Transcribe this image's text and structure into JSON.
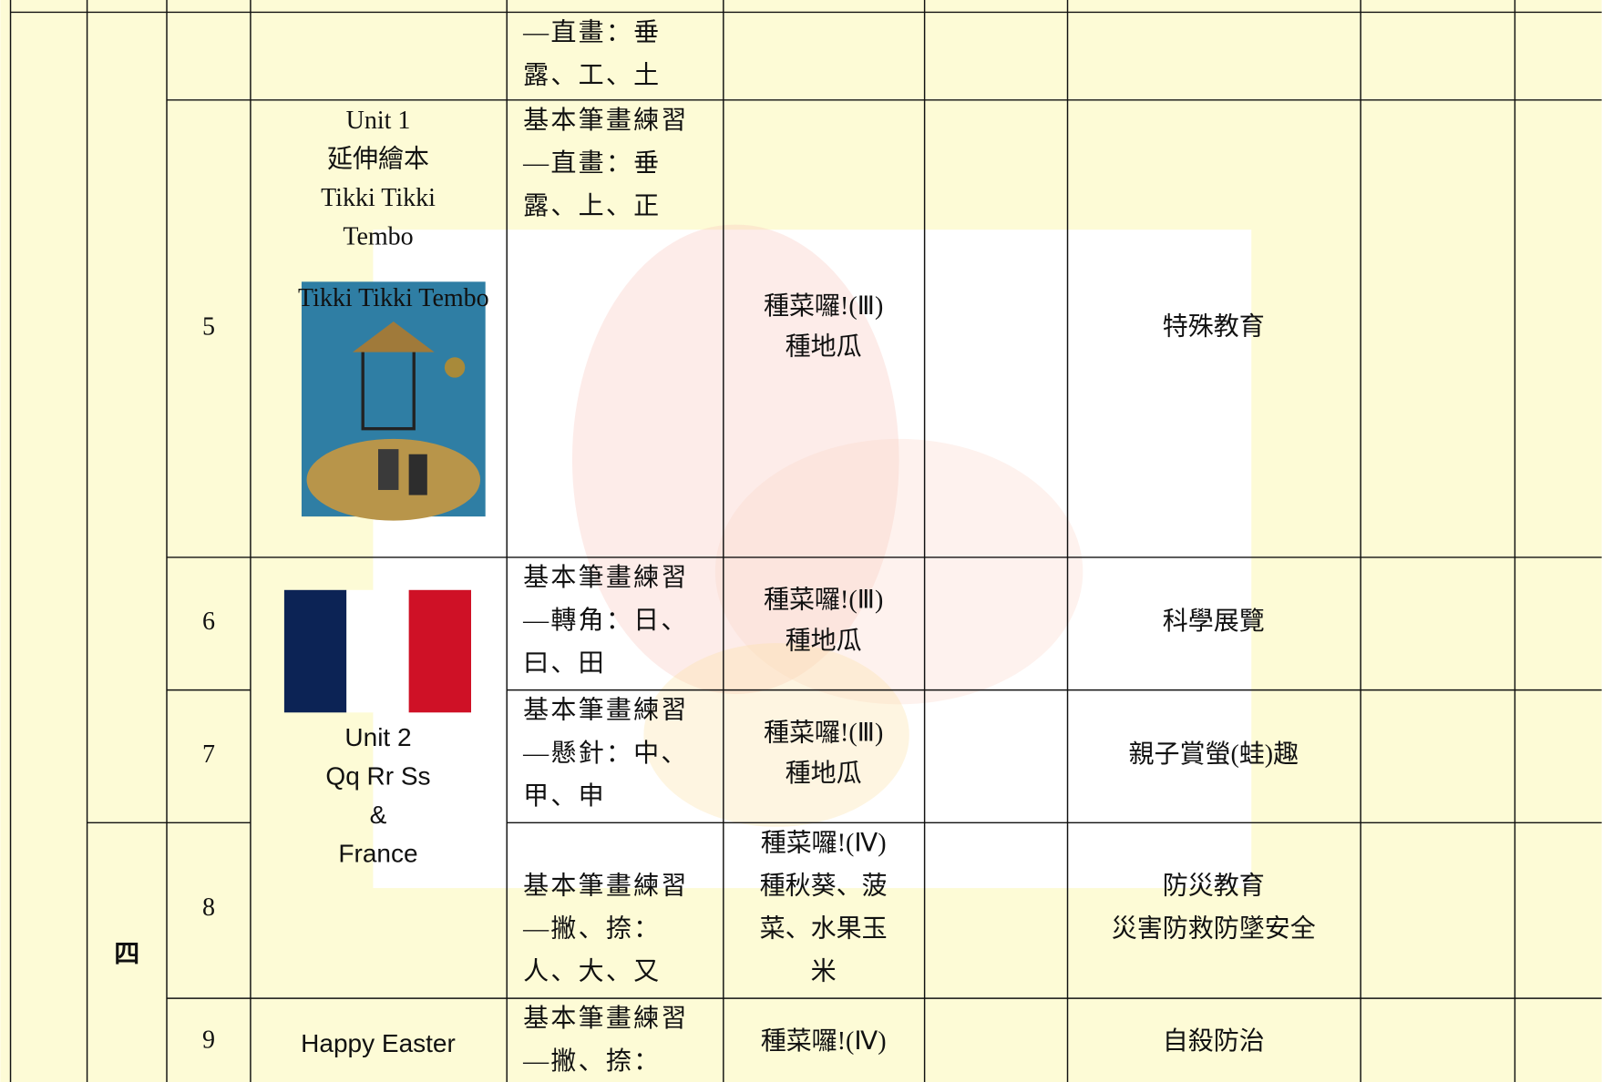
{
  "table": {
    "semester_mark": "四",
    "rows": [
      {
        "week": null,
        "unit": null,
        "writing": [
          "—直畫：垂",
          "露、工、土"
        ],
        "activity": null,
        "topic": null
      },
      {
        "week": "5",
        "unit": [
          "Unit 1",
          "延伸繪本",
          "Tikki Tikki",
          "Tembo"
        ],
        "book_cover_title": "Tikki Tikki Tembo",
        "writing": [
          "基本筆畫練習",
          "—直畫：垂",
          "露、上、正"
        ],
        "activity": [
          "種菜囉!(Ⅲ)",
          "種地瓜"
        ],
        "topic": [
          "特殊教育"
        ]
      },
      {
        "week": "6",
        "unit": [
          "Unit 2",
          "Qq Rr Ss",
          "&",
          "France"
        ],
        "writing": [
          "基本筆畫練習",
          "—轉角：日、",
          "曰、田"
        ],
        "activity": [
          "種菜囉!(Ⅲ)",
          "種地瓜"
        ],
        "topic": [
          "科學展覽"
        ]
      },
      {
        "week": "7",
        "unit": null,
        "writing": [
          "基本筆畫練習",
          "—懸針：中、",
          "甲、申"
        ],
        "activity": [
          "種菜囉!(Ⅲ)",
          "種地瓜"
        ],
        "topic": [
          "親子賞螢(蛙)趣"
        ]
      },
      {
        "week": "8",
        "unit": null,
        "writing": [
          "基本筆畫練習",
          "—撇、捺：",
          "人、大、又"
        ],
        "activity": [
          "種菜囉!(Ⅳ)",
          "種秋葵、菠",
          "菜、水果玉",
          "米"
        ],
        "topic": [
          "防災教育",
          "災害防救防墜安全"
        ]
      },
      {
        "week": "9",
        "unit": [
          "Happy Easter"
        ],
        "writing": [
          "基本筆畫練習",
          "—撇、捺："
        ],
        "activity": [
          "種菜囉!(Ⅳ)"
        ],
        "topic": [
          "自殺防治"
        ]
      }
    ]
  }
}
